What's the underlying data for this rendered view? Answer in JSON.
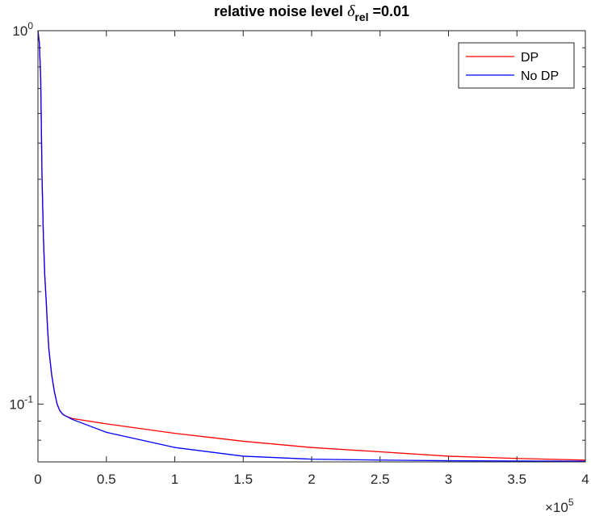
{
  "chart_data": {
    "type": "line",
    "title": {
      "prefix": "relative noise level ",
      "symbol": "δ",
      "subscript": "rel",
      "suffix": " =0.01"
    },
    "xlabel": "",
    "ylabel": "",
    "xlim": [
      0,
      400000
    ],
    "ylim": [
      0.07,
      1.0
    ],
    "yscale": "log",
    "x_tick_labels": [
      "0",
      "0.5",
      "1",
      "1.5",
      "2",
      "2.5",
      "3",
      "3.5",
      "4"
    ],
    "x_tick_values": [
      0,
      50000,
      100000,
      150000,
      200000,
      250000,
      300000,
      350000,
      400000
    ],
    "x_exponent": {
      "base": "×10",
      "power": "5"
    },
    "y_ticks": [
      {
        "value": 1.0,
        "base": "10",
        "power": "0"
      },
      {
        "value": 0.1,
        "base": "10",
        "power": "-1"
      }
    ],
    "y_minor_ticks": [
      0.08,
      0.09,
      0.2,
      0.3,
      0.4,
      0.5,
      0.6,
      0.7,
      0.8,
      0.9
    ],
    "grid": false,
    "box": true,
    "legend": {
      "placement": "top-right"
    },
    "series": [
      {
        "name": "DP",
        "color": "#ff0000",
        "x": [
          0,
          1000,
          2000,
          3000,
          4000,
          5000,
          6000,
          7000,
          8000,
          10000,
          12000,
          14000,
          16000,
          18000,
          20000,
          25000,
          50000,
          100000,
          150000,
          200000,
          250000,
          300000,
          350000,
          400000
        ],
        "y": [
          1.0,
          0.93,
          0.75,
          0.4,
          0.28,
          0.22,
          0.19,
          0.16,
          0.14,
          0.12,
          0.108,
          0.1,
          0.096,
          0.094,
          0.093,
          0.0915,
          0.0885,
          0.0835,
          0.0795,
          0.0765,
          0.0745,
          0.0725,
          0.0715,
          0.0708
        ]
      },
      {
        "name": "No DP",
        "color": "#0000ff",
        "x": [
          0,
          1000,
          2000,
          3000,
          4000,
          5000,
          6000,
          7000,
          8000,
          10000,
          12000,
          14000,
          16000,
          18000,
          20000,
          25000,
          50000,
          100000,
          150000,
          200000,
          250000,
          300000,
          350000,
          400000
        ],
        "y": [
          1.0,
          0.93,
          0.75,
          0.4,
          0.28,
          0.22,
          0.19,
          0.16,
          0.14,
          0.12,
          0.108,
          0.1,
          0.096,
          0.094,
          0.093,
          0.091,
          0.084,
          0.0765,
          0.0725,
          0.0712,
          0.0708,
          0.0705,
          0.0704,
          0.0703
        ]
      }
    ]
  }
}
